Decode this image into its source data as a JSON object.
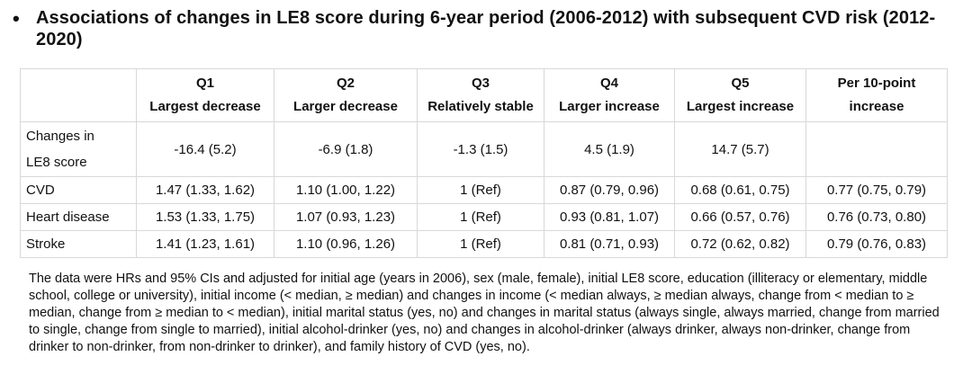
{
  "heading": {
    "bullet": "•",
    "title": "Associations of changes in LE8 score during 6-year period (2006-2012) with subsequent CVD risk (2012-2020)"
  },
  "table": {
    "columns": [
      {
        "top": "Q1",
        "bottom": "Largest decrease"
      },
      {
        "top": "Q2",
        "bottom": "Larger decrease"
      },
      {
        "top": "Q3",
        "bottom": "Relatively stable"
      },
      {
        "top": "Q4",
        "bottom": "Larger increase"
      },
      {
        "top": "Q5",
        "bottom": "Largest increase"
      },
      {
        "top": "Per 10-point",
        "bottom": "increase"
      }
    ],
    "rows": [
      {
        "label_line1": "Changes in",
        "label_line2": "LE8 score",
        "cells": [
          "-16.4 (5.2)",
          "-6.9 (1.8)",
          "-1.3 (1.5)",
          "4.5 (1.9)",
          "14.7 (5.7)",
          ""
        ]
      },
      {
        "label_line1": "CVD",
        "cells": [
          "1.47 (1.33, 1.62)",
          "1.10 (1.00, 1.22)",
          "1 (Ref)",
          "0.87 (0.79, 0.96)",
          "0.68 (0.61, 0.75)",
          "0.77 (0.75, 0.79)"
        ]
      },
      {
        "label_line1": "Heart disease",
        "cells": [
          "1.53 (1.33, 1.75)",
          "1.07 (0.93, 1.23)",
          "1 (Ref)",
          "0.93 (0.81, 1.07)",
          "0.66 (0.57, 0.76)",
          "0.76 (0.73, 0.80)"
        ]
      },
      {
        "label_line1": "Stroke",
        "cells": [
          "1.41 (1.23, 1.61)",
          "1.10 (0.96, 1.26)",
          "1 (Ref)",
          "0.81 (0.71, 0.93)",
          "0.72 (0.62, 0.82)",
          "0.79 (0.76, 0.83)"
        ]
      }
    ]
  },
  "footnote": "The data were HRs and 95% CIs and adjusted for initial age (years in 2006), sex (male, female), initial LE8 score, education (illiteracy or elementary, middle school, college or university), initial income (< median, ≥ median) and changes in income (< median always, ≥ median always, change from < median to ≥ median, change from ≥ median to < median), initial marital status (yes, no) and changes in marital status (always single, always married, change from married to single, change from single to married), initial alcohol-drinker (yes, no) and changes in alcohol-drinker (always drinker, always non-drinker, change from drinker to non-drinker, from non-drinker to drinker), and family history of CVD (yes, no)."
}
